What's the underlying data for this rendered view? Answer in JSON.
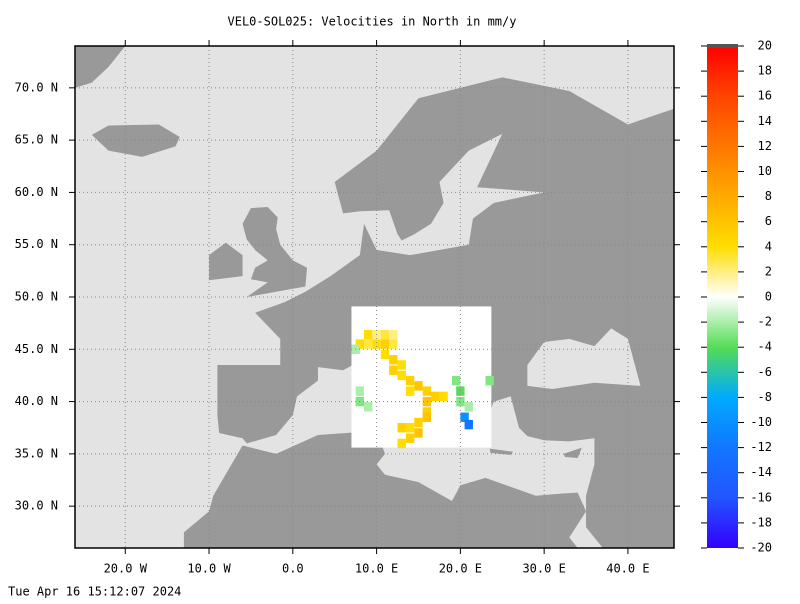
{
  "chart_data": {
    "type": "map",
    "title": "VEL0-SOL025: Velocities in North in mm/y",
    "timestamp": "Tue Apr 16 15:12:07 2024",
    "xlim": [
      -26,
      45.5
    ],
    "ylim": [
      26,
      74
    ],
    "xticks": [
      {
        "value": -20,
        "label": "20.0 W"
      },
      {
        "value": -10,
        "label": "10.0 W"
      },
      {
        "value": 0,
        "label": "0.0"
      },
      {
        "value": 10,
        "label": "10.0 E"
      },
      {
        "value": 20,
        "label": "20.0 E"
      },
      {
        "value": 30,
        "label": "30.0 E"
      },
      {
        "value": 40,
        "label": "40.0 E"
      }
    ],
    "yticks": [
      {
        "value": 30,
        "label": "30.0 N"
      },
      {
        "value": 35,
        "label": "35.0 N"
      },
      {
        "value": 40,
        "label": "40.0 N"
      },
      {
        "value": 45,
        "label": "45.0 N"
      },
      {
        "value": 50,
        "label": "50.0 N"
      },
      {
        "value": 55,
        "label": "55.0 N"
      },
      {
        "value": 60,
        "label": "60.0 N"
      },
      {
        "value": 65,
        "label": "65.0 N"
      },
      {
        "value": 70,
        "label": "70.0 N"
      }
    ],
    "grid": true,
    "colorbar": {
      "lim": [
        -20,
        20
      ],
      "ticks": [
        -20,
        -18,
        -16,
        -14,
        -12,
        -10,
        -8,
        -6,
        -4,
        -2,
        0,
        2,
        4,
        6,
        8,
        10,
        12,
        14,
        16,
        18,
        20
      ],
      "colors": [
        "#3300ff",
        "#2255ff",
        "#1177ff",
        "#00aaff",
        "#55dd55",
        "#ffffff",
        "#ffdd00",
        "#ffaa00",
        "#ff7700",
        "#ff4400",
        "#ff0000"
      ]
    },
    "cells": [
      {
        "lon": 8,
        "lat": 45.5,
        "value": 4
      },
      {
        "lon": 9,
        "lat": 45.5,
        "value": 3
      },
      {
        "lon": 10,
        "lat": 45.5,
        "value": 4
      },
      {
        "lon": 11,
        "lat": 45.5,
        "value": 5
      },
      {
        "lon": 12,
        "lat": 45.5,
        "value": 3
      },
      {
        "lon": 12,
        "lat": 46.4,
        "value": 2
      },
      {
        "lon": 9,
        "lat": 46.4,
        "value": 4
      },
      {
        "lon": 10,
        "lat": 46.4,
        "value": 2
      },
      {
        "lon": 11,
        "lat": 46.4,
        "value": 3
      },
      {
        "lon": 11,
        "lat": 44.5,
        "value": 4
      },
      {
        "lon": 12,
        "lat": 44,
        "value": 5
      },
      {
        "lon": 13,
        "lat": 43.5,
        "value": 4
      },
      {
        "lon": 12,
        "lat": 43,
        "value": 5
      },
      {
        "lon": 13,
        "lat": 42.5,
        "value": 4
      },
      {
        "lon": 14,
        "lat": 42,
        "value": 5
      },
      {
        "lon": 15,
        "lat": 41.5,
        "value": 6
      },
      {
        "lon": 14,
        "lat": 41,
        "value": 4
      },
      {
        "lon": 16,
        "lat": 41,
        "value": 5
      },
      {
        "lon": 17,
        "lat": 40.5,
        "value": 5
      },
      {
        "lon": 18,
        "lat": 40.5,
        "value": 4
      },
      {
        "lon": 16,
        "lat": 40,
        "value": 6
      },
      {
        "lon": 16,
        "lat": 39,
        "value": 5
      },
      {
        "lon": 16,
        "lat": 38.5,
        "value": 6
      },
      {
        "lon": 15,
        "lat": 38,
        "value": 5
      },
      {
        "lon": 14,
        "lat": 37.5,
        "value": 4
      },
      {
        "lon": 13,
        "lat": 37.5,
        "value": 5
      },
      {
        "lon": 15,
        "lat": 37,
        "value": 6
      },
      {
        "lon": 14,
        "lat": 36.5,
        "value": 5
      },
      {
        "lon": 13,
        "lat": 36,
        "value": 4
      },
      {
        "lon": 8,
        "lat": 40,
        "value": -3
      },
      {
        "lon": 9,
        "lat": 39.5,
        "value": -2
      },
      {
        "lon": 8,
        "lat": 41,
        "value": -2
      },
      {
        "lon": 7.5,
        "lat": 45,
        "value": -2
      },
      {
        "lon": 19.5,
        "lat": 42,
        "value": -3
      },
      {
        "lon": 20,
        "lat": 41,
        "value": -4
      },
      {
        "lon": 20,
        "lat": 40,
        "value": -3
      },
      {
        "lon": 21,
        "lat": 39.5,
        "value": -2
      },
      {
        "lon": 23.5,
        "lat": 42,
        "value": -3
      },
      {
        "lon": 20.5,
        "lat": 38.5,
        "value": -10
      },
      {
        "lon": 21,
        "lat": 37.8,
        "value": -12
      }
    ]
  }
}
